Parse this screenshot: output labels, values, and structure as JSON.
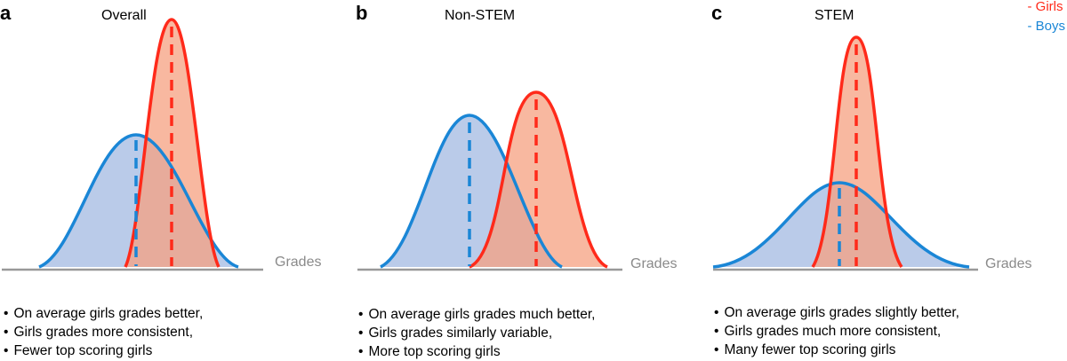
{
  "legend": {
    "girls_label": "- Girls",
    "boys_label": "- Boys",
    "girls_color": "#ff2a1a",
    "boys_color": "#1a86d6"
  },
  "axis_label": "Grades",
  "panels": [
    {
      "letter": "a",
      "title": "Overall",
      "bullets": [
        "On average girls grades better,",
        "Girls grades more consistent,",
        "Fewer top scoring girls"
      ]
    },
    {
      "letter": "b",
      "title": "Non-STEM",
      "bullets": [
        "On average girls grades much better,",
        "Girls grades similarly variable,",
        "More top scoring girls"
      ]
    },
    {
      "letter": "c",
      "title": "STEM",
      "bullets": [
        "On average girls grades slightly better,",
        "Girls grades much more consistent,",
        "Many fewer top scoring girls"
      ]
    }
  ]
}
